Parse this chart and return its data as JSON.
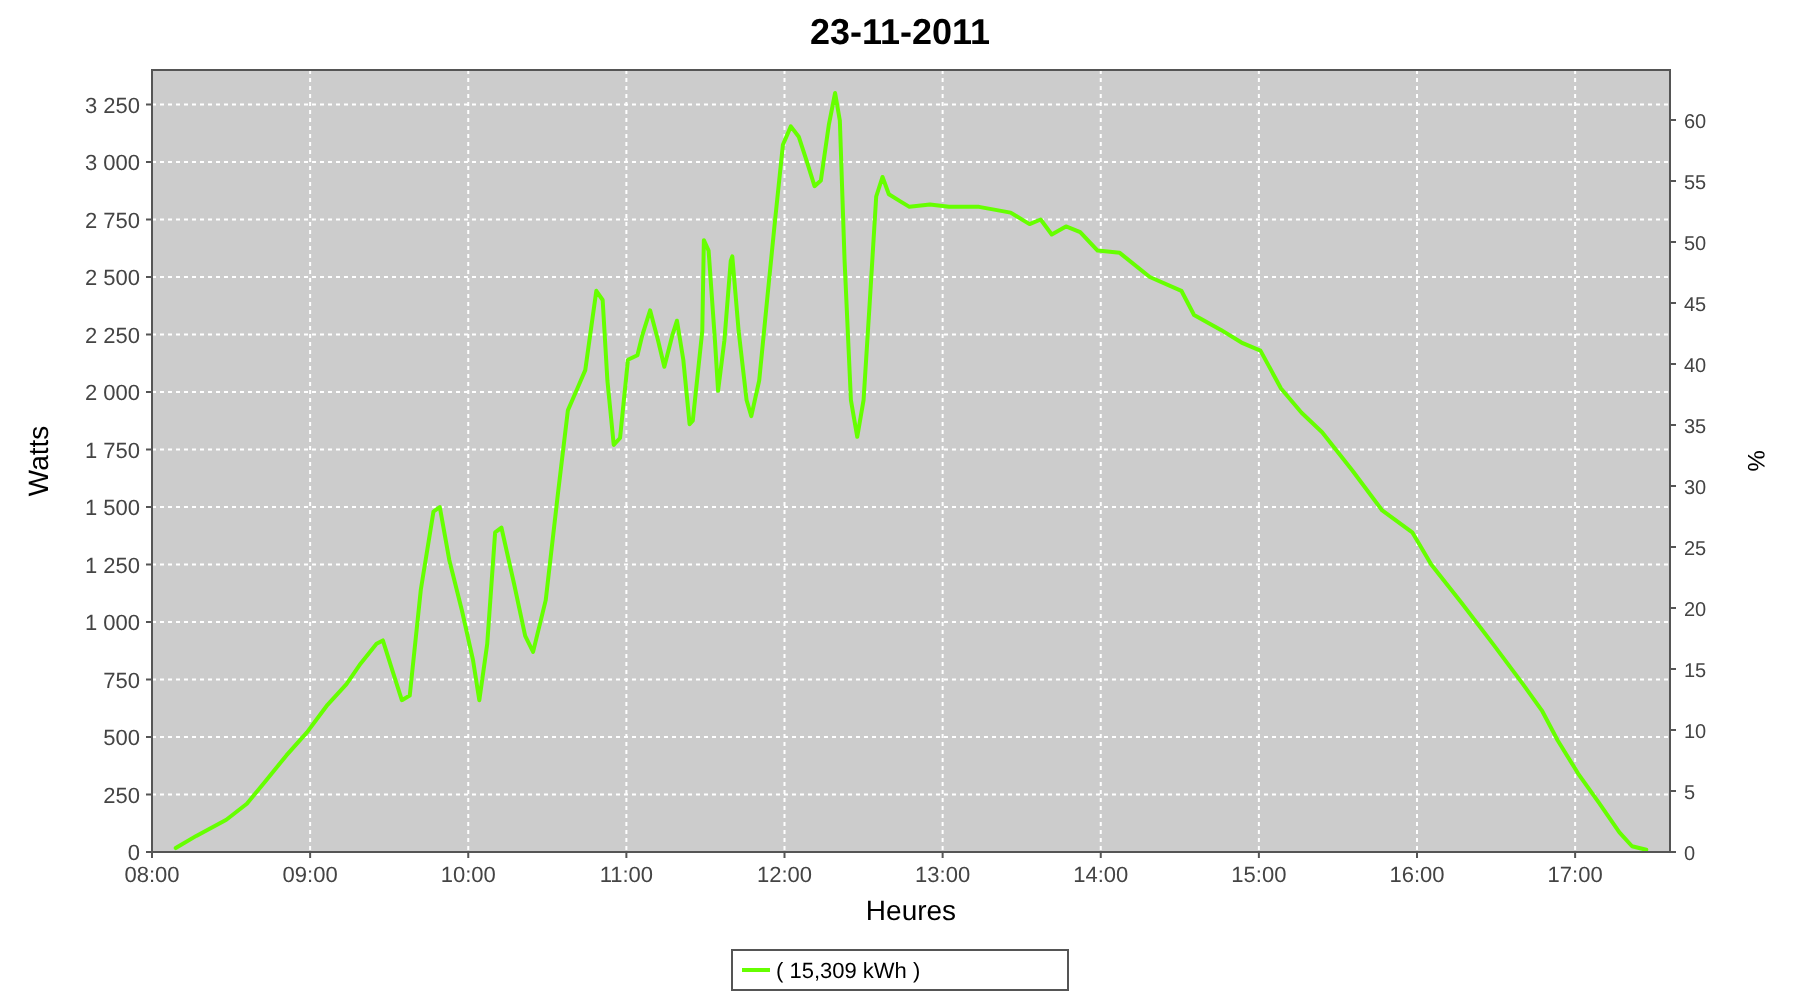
{
  "chart_data": {
    "type": "line",
    "title": "23-11-2011",
    "xlabel": "Heures",
    "ylabel": "Watts",
    "y2label": "%",
    "xlim": [
      8.0,
      17.6
    ],
    "xticks": [
      {
        "value": 8,
        "label": "08:00"
      },
      {
        "value": 9,
        "label": "09:00"
      },
      {
        "value": 10,
        "label": "10:00"
      },
      {
        "value": 11,
        "label": "11:00"
      },
      {
        "value": 12,
        "label": "12:00"
      },
      {
        "value": 13,
        "label": "13:00"
      },
      {
        "value": 14,
        "label": "14:00"
      },
      {
        "value": 15,
        "label": "15:00"
      },
      {
        "value": 16,
        "label": "16:00"
      },
      {
        "value": 17,
        "label": "17:00"
      }
    ],
    "ylim": [
      0,
      3400
    ],
    "yticks": [
      0,
      250,
      500,
      750,
      {
        "value": 1000,
        "label": "1 000"
      },
      {
        "value": 1250,
        "label": "1 250"
      },
      {
        "value": 1500,
        "label": "1 500"
      },
      {
        "value": 1750,
        "label": "1 750"
      },
      {
        "value": 2000,
        "label": "2 000"
      },
      {
        "value": 2250,
        "label": "2 250"
      },
      {
        "value": 2500,
        "label": "2 500"
      },
      {
        "value": 2750,
        "label": "2 750"
      },
      {
        "value": 3000,
        "label": "3 000"
      },
      {
        "value": 3250,
        "label": "3 250"
      }
    ],
    "y2lim": [
      0,
      64.1
    ],
    "y2ticks": [
      0,
      5,
      10,
      15,
      20,
      25,
      30,
      35,
      40,
      45,
      50,
      55,
      60
    ],
    "grid": true,
    "legend": "bottom",
    "marker": "none",
    "line_style": "solid",
    "series": [
      {
        "name": "( 15,309 kWh )",
        "color": "#66ff00",
        "x": [
          8.15,
          8.28,
          8.47,
          8.6,
          8.72,
          8.85,
          8.98,
          9.11,
          9.23,
          9.32,
          9.42,
          9.46,
          9.52,
          9.58,
          9.63,
          9.7,
          9.78,
          9.82,
          9.88,
          9.96,
          10.03,
          10.07,
          10.12,
          10.17,
          10.21,
          10.29,
          10.36,
          10.41,
          10.49,
          10.57,
          10.63,
          10.69,
          10.74,
          10.81,
          10.85,
          10.88,
          10.92,
          10.96,
          11.01,
          11.07,
          11.1,
          11.15,
          11.2,
          11.24,
          11.29,
          11.32,
          11.36,
          11.4,
          11.42,
          11.48,
          11.49,
          11.52,
          11.56,
          11.58,
          11.62,
          11.66,
          11.67,
          11.71,
          11.76,
          11.79,
          11.84,
          11.89,
          11.94,
          11.99,
          12.04,
          12.09,
          12.14,
          12.19,
          12.23,
          12.28,
          12.32,
          12.35,
          12.38,
          12.42,
          12.46,
          12.5,
          12.54,
          12.58,
          12.62,
          12.66,
          12.73,
          12.79,
          12.92,
          13.04,
          13.23,
          13.43,
          13.55,
          13.62,
          13.69,
          13.78,
          13.87,
          13.98,
          14.12,
          14.31,
          14.51,
          14.59,
          14.76,
          14.89,
          15.01,
          15.14,
          15.27,
          15.4,
          15.59,
          15.78,
          15.97,
          16.09,
          16.28,
          16.48,
          16.67,
          16.79,
          16.89,
          17.02,
          17.15,
          17.28,
          17.36,
          17.45
        ],
        "values": [
          17,
          70,
          140,
          210,
          310,
          420,
          520,
          640,
          730,
          820,
          905,
          920,
          790,
          660,
          680,
          1140,
          1480,
          1500,
          1270,
          1050,
          835,
          660,
          905,
          1390,
          1410,
          1165,
          940,
          870,
          1095,
          1575,
          1920,
          2015,
          2095,
          2440,
          2400,
          2050,
          1770,
          1800,
          2140,
          2160,
          2245,
          2355,
          2225,
          2110,
          2245,
          2310,
          2140,
          1860,
          1875,
          2265,
          2660,
          2615,
          2225,
          2005,
          2225,
          2570,
          2590,
          2265,
          1965,
          1895,
          2050,
          2400,
          2745,
          3075,
          3155,
          3110,
          3005,
          2895,
          2920,
          3160,
          3300,
          3180,
          2570,
          1965,
          1805,
          1965,
          2400,
          2850,
          2935,
          2860,
          2830,
          2805,
          2815,
          2805,
          2805,
          2780,
          2730,
          2750,
          2685,
          2720,
          2695,
          2615,
          2605,
          2500,
          2440,
          2335,
          2270,
          2215,
          2180,
          2015,
          1910,
          1825,
          1660,
          1485,
          1390,
          1250,
          1085,
          905,
          730,
          615,
          485,
          340,
          215,
          85,
          25,
          10
        ]
      }
    ]
  }
}
